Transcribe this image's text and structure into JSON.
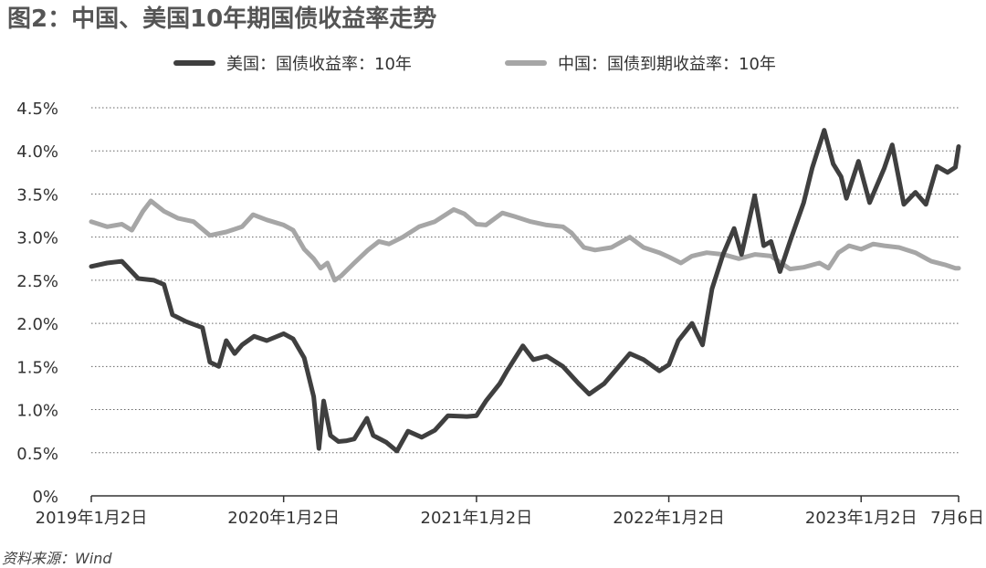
{
  "title": "图2：中国、美国10年期国债收益率走势",
  "source": "资料来源：Wind",
  "colors": {
    "us": "#3f3f3f",
    "china": "#a6a6a6",
    "grid": "#666666",
    "axis": "#333333"
  },
  "chart_data": {
    "type": "line",
    "title": "图2：中国、美国10年期国债收益率走势",
    "xlabel": "",
    "ylabel": "",
    "ylim": [
      0,
      4.5
    ],
    "yticks": [
      "0%",
      "0.5%",
      "1.0%",
      "1.5%",
      "2.0%",
      "2.5%",
      "3.0%",
      "3.5%",
      "4.0%",
      "4.5%"
    ],
    "xlim": [
      "2019-01-02",
      "2023-07-06"
    ],
    "xticks": [
      {
        "date": "2019-01-02",
        "label": "2019年1月2日"
      },
      {
        "date": "2020-01-02",
        "label": "2020年1月2日"
      },
      {
        "date": "2021-01-02",
        "label": "2021年1月2日"
      },
      {
        "date": "2022-01-02",
        "label": "2022年1月2日"
      },
      {
        "date": "2023-01-02",
        "label": "2023年1月2日"
      },
      {
        "date": "2023-07-06",
        "label": "7月6日"
      }
    ],
    "grid": "horizontal dotted",
    "legend_position": "top",
    "series": [
      {
        "name": "美国：国债收益率：10年",
        "key": "us",
        "points": [
          [
            "2019-01-02",
            2.66
          ],
          [
            "2019-02-01",
            2.7
          ],
          [
            "2019-03-01",
            2.72
          ],
          [
            "2019-04-01",
            2.52
          ],
          [
            "2019-05-01",
            2.5
          ],
          [
            "2019-05-20",
            2.45
          ],
          [
            "2019-06-05",
            2.1
          ],
          [
            "2019-07-01",
            2.02
          ],
          [
            "2019-08-01",
            1.95
          ],
          [
            "2019-08-15",
            1.55
          ],
          [
            "2019-09-01",
            1.5
          ],
          [
            "2019-09-15",
            1.8
          ],
          [
            "2019-10-01",
            1.65
          ],
          [
            "2019-10-15",
            1.75
          ],
          [
            "2019-11-07",
            1.85
          ],
          [
            "2019-12-01",
            1.8
          ],
          [
            "2020-01-02",
            1.88
          ],
          [
            "2020-01-20",
            1.82
          ],
          [
            "2020-02-10",
            1.6
          ],
          [
            "2020-02-28",
            1.15
          ],
          [
            "2020-03-09",
            0.55
          ],
          [
            "2020-03-18",
            1.1
          ],
          [
            "2020-03-31",
            0.7
          ],
          [
            "2020-04-15",
            0.63
          ],
          [
            "2020-05-01",
            0.64
          ],
          [
            "2020-05-15",
            0.66
          ],
          [
            "2020-06-08",
            0.9
          ],
          [
            "2020-06-20",
            0.7
          ],
          [
            "2020-07-15",
            0.62
          ],
          [
            "2020-08-04",
            0.52
          ],
          [
            "2020-08-25",
            0.75
          ],
          [
            "2020-09-20",
            0.68
          ],
          [
            "2020-10-15",
            0.76
          ],
          [
            "2020-11-09",
            0.93
          ],
          [
            "2020-12-15",
            0.92
          ],
          [
            "2021-01-02",
            0.93
          ],
          [
            "2021-01-20",
            1.1
          ],
          [
            "2021-02-15",
            1.3
          ],
          [
            "2021-03-01",
            1.45
          ],
          [
            "2021-03-31",
            1.74
          ],
          [
            "2021-04-20",
            1.58
          ],
          [
            "2021-05-15",
            1.62
          ],
          [
            "2021-06-15",
            1.5
          ],
          [
            "2021-07-15",
            1.3
          ],
          [
            "2021-08-04",
            1.18
          ],
          [
            "2021-09-01",
            1.3
          ],
          [
            "2021-10-20",
            1.65
          ],
          [
            "2021-11-15",
            1.58
          ],
          [
            "2021-12-15",
            1.45
          ],
          [
            "2022-01-02",
            1.52
          ],
          [
            "2022-01-20",
            1.8
          ],
          [
            "2022-02-15",
            2.0
          ],
          [
            "2022-03-07",
            1.75
          ],
          [
            "2022-03-25",
            2.4
          ],
          [
            "2022-04-15",
            2.8
          ],
          [
            "2022-05-06",
            3.1
          ],
          [
            "2022-05-20",
            2.8
          ],
          [
            "2022-06-14",
            3.48
          ],
          [
            "2022-07-01",
            2.9
          ],
          [
            "2022-07-15",
            2.95
          ],
          [
            "2022-08-01",
            2.6
          ],
          [
            "2022-08-20",
            2.95
          ],
          [
            "2022-09-15",
            3.4
          ],
          [
            "2022-10-01",
            3.8
          ],
          [
            "2022-10-24",
            4.24
          ],
          [
            "2022-11-10",
            3.85
          ],
          [
            "2022-11-25",
            3.7
          ],
          [
            "2022-12-05",
            3.45
          ],
          [
            "2022-12-28",
            3.88
          ],
          [
            "2023-01-18",
            3.4
          ],
          [
            "2023-02-15",
            3.8
          ],
          [
            "2023-03-02",
            4.07
          ],
          [
            "2023-03-24",
            3.38
          ],
          [
            "2023-04-15",
            3.52
          ],
          [
            "2023-05-05",
            3.38
          ],
          [
            "2023-05-26",
            3.82
          ],
          [
            "2023-06-15",
            3.75
          ],
          [
            "2023-06-30",
            3.81
          ],
          [
            "2023-07-06",
            4.05
          ]
        ]
      },
      {
        "name": "中国：国债到期收益率：10年",
        "key": "china",
        "points": [
          [
            "2019-01-02",
            3.18
          ],
          [
            "2019-02-01",
            3.12
          ],
          [
            "2019-03-01",
            3.15
          ],
          [
            "2019-03-20",
            3.08
          ],
          [
            "2019-04-10",
            3.3
          ],
          [
            "2019-04-25",
            3.42
          ],
          [
            "2019-05-20",
            3.3
          ],
          [
            "2019-06-15",
            3.22
          ],
          [
            "2019-07-15",
            3.18
          ],
          [
            "2019-08-15",
            3.02
          ],
          [
            "2019-09-15",
            3.06
          ],
          [
            "2019-10-15",
            3.12
          ],
          [
            "2019-11-05",
            3.26
          ],
          [
            "2019-12-01",
            3.2
          ],
          [
            "2020-01-02",
            3.14
          ],
          [
            "2020-01-20",
            3.08
          ],
          [
            "2020-02-10",
            2.86
          ],
          [
            "2020-02-28",
            2.75
          ],
          [
            "2020-03-12",
            2.64
          ],
          [
            "2020-03-25",
            2.7
          ],
          [
            "2020-04-08",
            2.5
          ],
          [
            "2020-04-20",
            2.55
          ],
          [
            "2020-05-15",
            2.7
          ],
          [
            "2020-06-10",
            2.85
          ],
          [
            "2020-07-01",
            2.95
          ],
          [
            "2020-07-20",
            2.92
          ],
          [
            "2020-08-15",
            3.0
          ],
          [
            "2020-09-15",
            3.12
          ],
          [
            "2020-10-15",
            3.18
          ],
          [
            "2020-11-20",
            3.32
          ],
          [
            "2020-12-10",
            3.27
          ],
          [
            "2021-01-02",
            3.15
          ],
          [
            "2021-01-20",
            3.14
          ],
          [
            "2021-02-20",
            3.28
          ],
          [
            "2021-03-15",
            3.24
          ],
          [
            "2021-04-15",
            3.18
          ],
          [
            "2021-05-15",
            3.14
          ],
          [
            "2021-06-15",
            3.12
          ],
          [
            "2021-07-01",
            3.05
          ],
          [
            "2021-07-25",
            2.88
          ],
          [
            "2021-08-15",
            2.85
          ],
          [
            "2021-09-15",
            2.88
          ],
          [
            "2021-10-20",
            3.0
          ],
          [
            "2021-11-15",
            2.88
          ],
          [
            "2021-12-15",
            2.82
          ],
          [
            "2022-01-02",
            2.77
          ],
          [
            "2022-01-25",
            2.7
          ],
          [
            "2022-02-15",
            2.78
          ],
          [
            "2022-03-15",
            2.82
          ],
          [
            "2022-04-15",
            2.8
          ],
          [
            "2022-05-15",
            2.75
          ],
          [
            "2022-06-15",
            2.8
          ],
          [
            "2022-07-15",
            2.78
          ],
          [
            "2022-08-20",
            2.63
          ],
          [
            "2022-09-15",
            2.65
          ],
          [
            "2022-10-15",
            2.7
          ],
          [
            "2022-11-01",
            2.64
          ],
          [
            "2022-11-20",
            2.82
          ],
          [
            "2022-12-10",
            2.9
          ],
          [
            "2023-01-02",
            2.86
          ],
          [
            "2023-01-25",
            2.92
          ],
          [
            "2023-02-15",
            2.9
          ],
          [
            "2023-03-15",
            2.88
          ],
          [
            "2023-04-15",
            2.82
          ],
          [
            "2023-05-15",
            2.72
          ],
          [
            "2023-06-10",
            2.68
          ],
          [
            "2023-06-30",
            2.64
          ],
          [
            "2023-07-06",
            2.64
          ]
        ]
      }
    ]
  }
}
